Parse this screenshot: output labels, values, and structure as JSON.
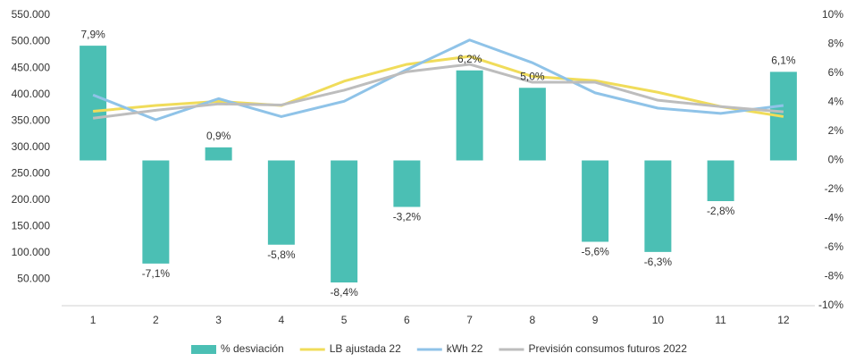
{
  "chart_data": {
    "type": "combo",
    "categories": [
      "1",
      "2",
      "3",
      "4",
      "5",
      "6",
      "7",
      "8",
      "9",
      "10",
      "11",
      "12"
    ],
    "ylim": [
      0,
      550000
    ],
    "yticks": [
      {
        "value": 50000,
        "label": "50.000"
      },
      {
        "value": 100000,
        "label": "100.000"
      },
      {
        "value": 150000,
        "label": "150.000"
      },
      {
        "value": 200000,
        "label": "200.000"
      },
      {
        "value": 250000,
        "label": "250.000"
      },
      {
        "value": 300000,
        "label": "300.000"
      },
      {
        "value": 350000,
        "label": "350.000"
      },
      {
        "value": 400000,
        "label": "400.000"
      },
      {
        "value": 450000,
        "label": "450.000"
      },
      {
        "value": 500000,
        "label": "500.000"
      },
      {
        "value": 550000,
        "label": "550.000"
      }
    ],
    "y2lim": [
      -10,
      10
    ],
    "y2ticks": [
      {
        "value": -10,
        "label": "-10%"
      },
      {
        "value": -8,
        "label": "-8%"
      },
      {
        "value": -6,
        "label": "-6%"
      },
      {
        "value": -4,
        "label": "-4%"
      },
      {
        "value": -2,
        "label": "-2%"
      },
      {
        "value": 0,
        "label": "0%"
      },
      {
        "value": 2,
        "label": "2%"
      },
      {
        "value": 4,
        "label": "4%"
      },
      {
        "value": 6,
        "label": "6%"
      },
      {
        "value": 8,
        "label": "8%"
      },
      {
        "value": 10,
        "label": "10%"
      }
    ],
    "series": [
      {
        "name": "% desviación",
        "type": "bar",
        "axis": "y2",
        "color": "#4bbfb4",
        "values": [
          7.9,
          -7.1,
          0.9,
          -5.8,
          -8.4,
          -3.2,
          6.2,
          5.0,
          -5.6,
          -6.3,
          -2.8,
          6.1
        ],
        "value_labels": [
          "7,9%",
          "-7,1%",
          "0,9%",
          "-5,8%",
          "-8,4%",
          "-3,2%",
          "6,2%",
          "5,0%",
          "-5,6%",
          "-6,3%",
          "-2,8%",
          "6,1%"
        ]
      },
      {
        "name": "LB ajustada 22",
        "type": "line",
        "color": "#f0dc5a",
        "values": [
          368000,
          379000,
          387000,
          379000,
          425000,
          457000,
          472000,
          434000,
          426000,
          404000,
          377000,
          358000
        ]
      },
      {
        "name": "kWh 22",
        "type": "line",
        "color": "#8fc3e8",
        "values": [
          399000,
          352000,
          392000,
          358000,
          387000,
          447000,
          503000,
          460000,
          403000,
          374000,
          364000,
          379000
        ]
      },
      {
        "name": "Previsión consumos futuros 2022",
        "type": "line",
        "color": "#bdbdbd",
        "values": [
          355000,
          370000,
          382000,
          380000,
          408000,
          443000,
          457000,
          423000,
          423000,
          389000,
          377000,
          367000
        ]
      }
    ]
  }
}
